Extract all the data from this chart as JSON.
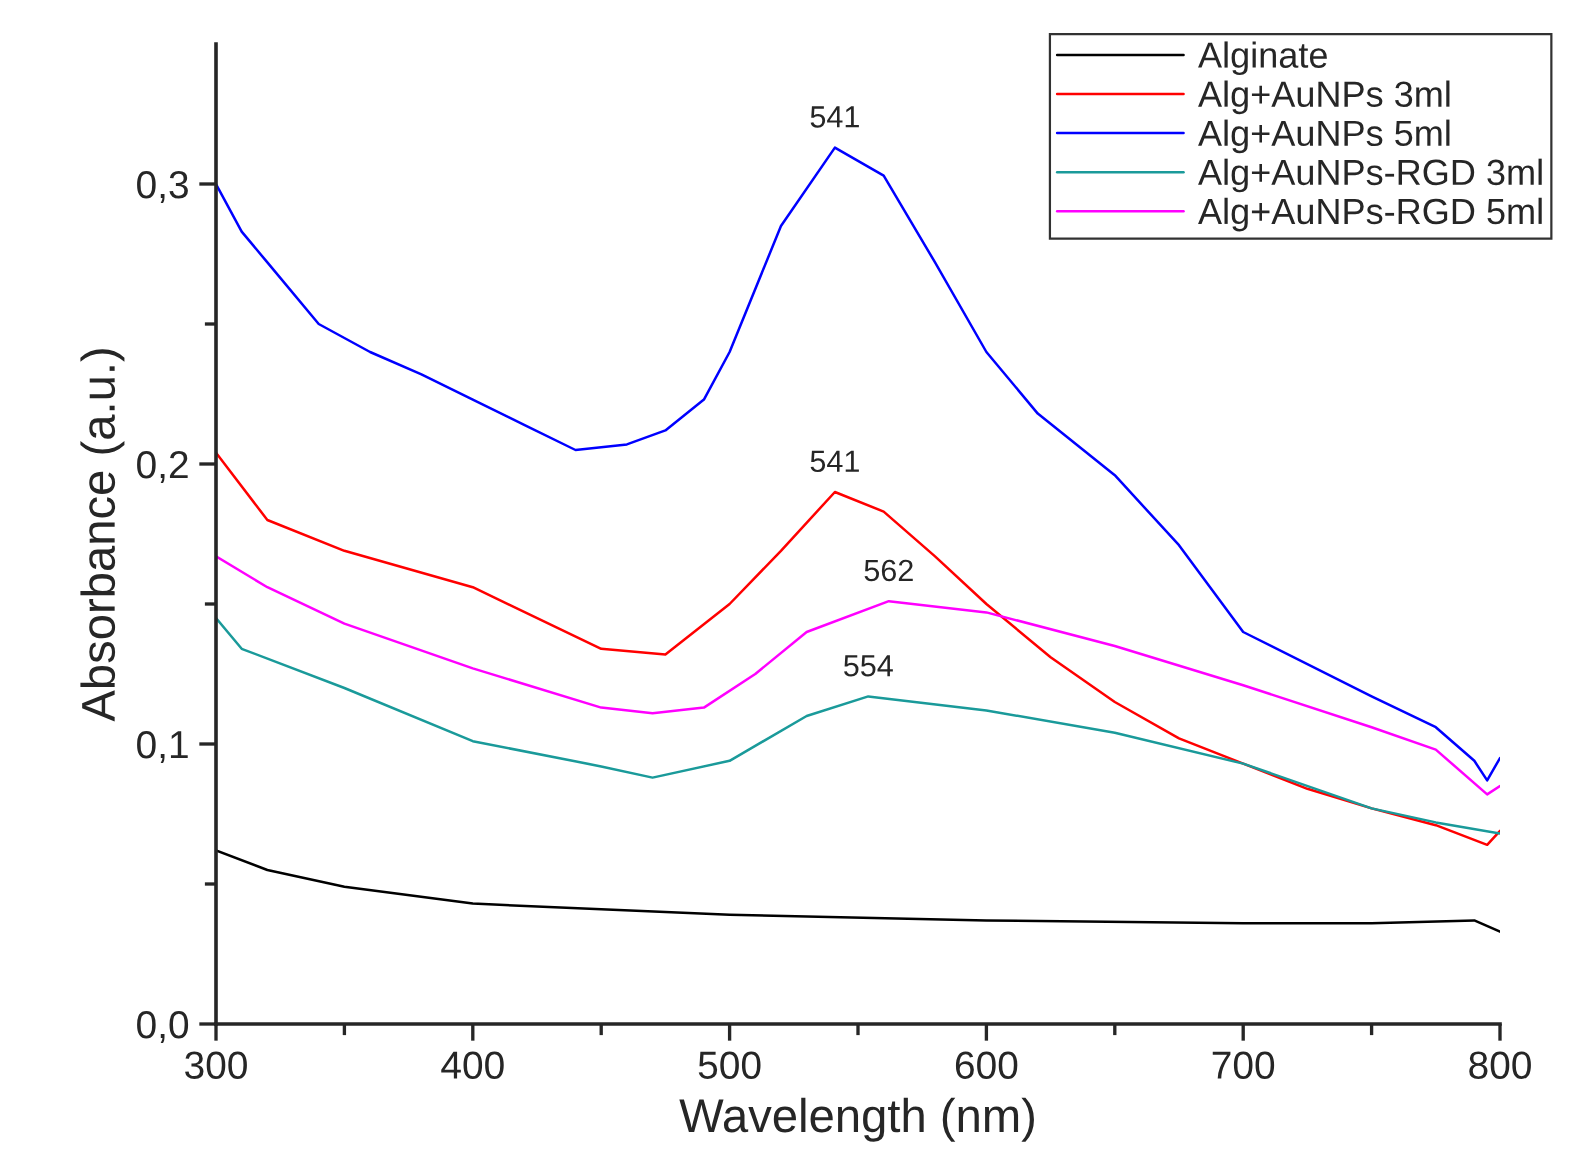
{
  "chart_data": {
    "type": "line",
    "xlabel": "Wavelength (nm)",
    "ylabel": "Absorbance (a.u.)",
    "xlim": [
      300,
      800
    ],
    "ylim": [
      0,
      0.35
    ],
    "xticks": [
      300,
      {
        "value": 350,
        "label": null
      },
      400,
      {
        "value": 450,
        "label": null
      },
      500,
      {
        "value": 550,
        "label": null
      },
      600,
      {
        "value": 650,
        "label": null
      },
      700,
      {
        "value": 750,
        "label": null
      },
      800
    ],
    "yticks": [
      {
        "value": 0,
        "label": "0,0"
      },
      {
        "value": 0.05,
        "label": null
      },
      {
        "value": 0.1,
        "label": "0,1"
      },
      {
        "value": 0.15,
        "label": null
      },
      {
        "value": 0.2,
        "label": "0,2"
      },
      {
        "value": 0.25,
        "label": null
      },
      {
        "value": 0.3,
        "label": "0,3"
      }
    ],
    "grid": false,
    "legend": "top right",
    "marker": "none",
    "line_style": "solid",
    "series": [
      {
        "name": "Alginate",
        "color": "#000000",
        "x": [
          300,
          320,
          350,
          400,
          450,
          500,
          600,
          700,
          750,
          790,
          800
        ],
        "values": [
          0.062,
          0.055,
          0.049,
          0.043,
          0.041,
          0.039,
          0.037,
          0.036,
          0.036,
          0.037,
          0.033
        ]
      },
      {
        "name": "Alg+AuNPs 3ml",
        "color": "#ff0000",
        "x": [
          300,
          320,
          350,
          400,
          450,
          475,
          500,
          520,
          541,
          560,
          580,
          600,
          625,
          650,
          675,
          700,
          725,
          750,
          775,
          795,
          800
        ],
        "values": [
          0.204,
          0.18,
          0.169,
          0.156,
          0.134,
          0.132,
          0.15,
          0.169,
          0.19,
          0.183,
          0.167,
          0.15,
          0.131,
          0.115,
          0.102,
          0.093,
          0.084,
          0.077,
          0.071,
          0.064,
          0.069
        ]
      },
      {
        "name": "Alg+AuNPs 5ml",
        "color": "#0000ff",
        "x": [
          300,
          310,
          320,
          340,
          360,
          380,
          400,
          420,
          440,
          460,
          475,
          490,
          500,
          520,
          541,
          560,
          580,
          600,
          620,
          650,
          675,
          700,
          750,
          775,
          790,
          795,
          800
        ],
        "values": [
          0.3,
          0.283,
          0.272,
          0.25,
          0.24,
          0.232,
          0.223,
          0.214,
          0.205,
          0.207,
          0.212,
          0.223,
          0.24,
          0.285,
          0.313,
          0.303,
          0.272,
          0.24,
          0.218,
          0.196,
          0.171,
          0.14,
          0.117,
          0.106,
          0.094,
          0.087,
          0.095
        ]
      },
      {
        "name": "Alg+AuNPs-RGD 3ml",
        "color": "#1a9a9a",
        "x": [
          300,
          310,
          350,
          400,
          450,
          470,
          500,
          530,
          554,
          600,
          650,
          700,
          750,
          775,
          800
        ],
        "values": [
          0.145,
          0.134,
          0.12,
          0.101,
          0.092,
          0.088,
          0.094,
          0.11,
          0.117,
          0.112,
          0.104,
          0.093,
          0.077,
          0.072,
          0.068
        ]
      },
      {
        "name": "Alg+AuNPs-RGD 5ml",
        "color": "#ff00ff",
        "x": [
          300,
          320,
          350,
          400,
          450,
          470,
          490,
          510,
          530,
          562,
          600,
          650,
          700,
          750,
          775,
          795,
          800
        ],
        "values": [
          0.167,
          0.156,
          0.143,
          0.127,
          0.113,
          0.111,
          0.113,
          0.125,
          0.14,
          0.151,
          0.147,
          0.135,
          0.121,
          0.106,
          0.098,
          0.082,
          0.085
        ]
      }
    ],
    "annotations": [
      {
        "text": "541",
        "x": 541,
        "y": 0.313
      },
      {
        "text": "541",
        "x": 541,
        "y": 0.19
      },
      {
        "text": "562",
        "x": 562,
        "y": 0.151
      },
      {
        "text": "554",
        "x": 554,
        "y": 0.117
      }
    ]
  }
}
